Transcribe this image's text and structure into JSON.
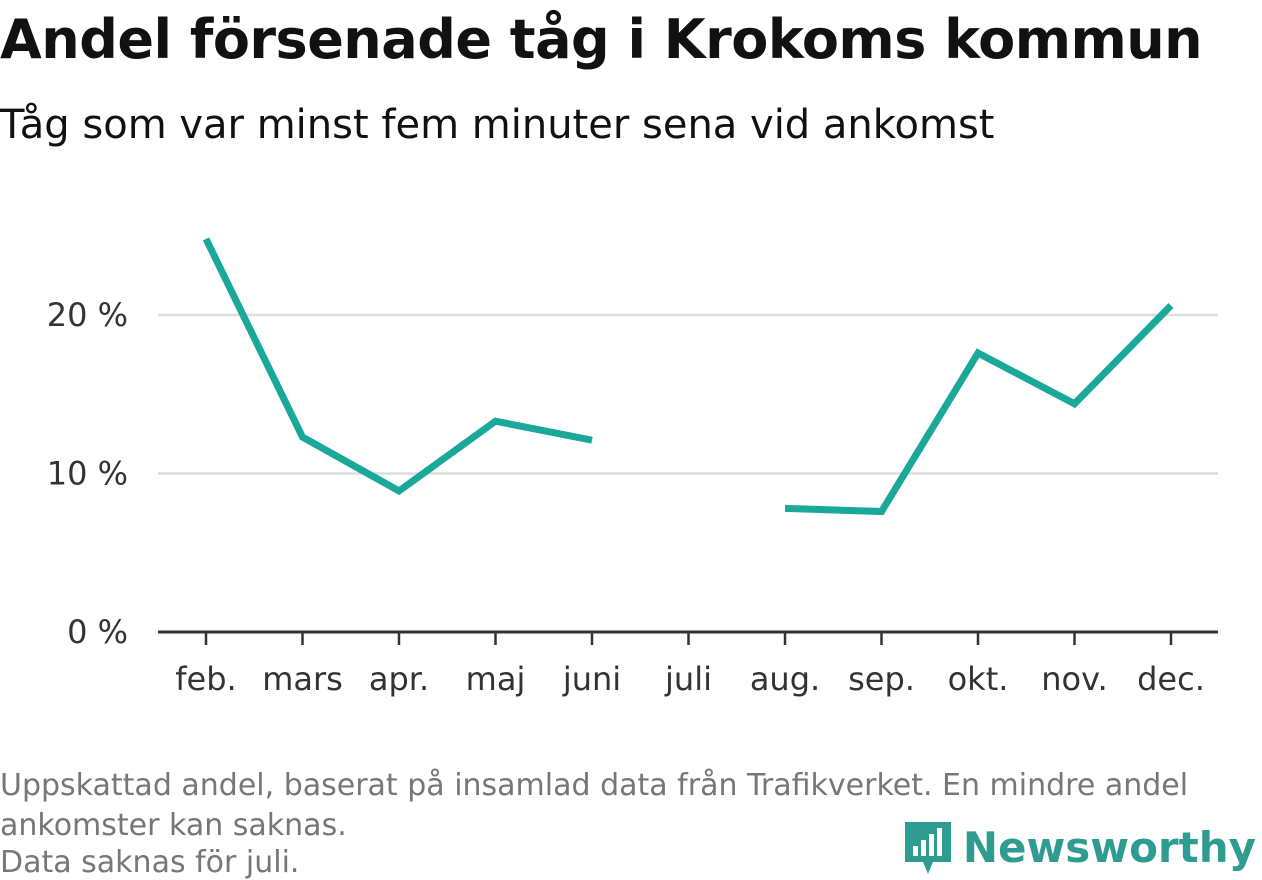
{
  "header": {
    "title": "Andel försenade tåg i Krokoms kommun",
    "subtitle": "Tåg som var minst fem minuter sena vid ankomst"
  },
  "colors": {
    "line": "#1aa89a",
    "grid": "#dddddd",
    "axis": "#333333",
    "logo": "#2f9c92"
  },
  "chart_data": {
    "type": "line",
    "categories": [
      "feb.",
      "mars",
      "apr.",
      "maj",
      "juni",
      "juli",
      "aug.",
      "sep.",
      "okt.",
      "nov.",
      "dec."
    ],
    "series": [
      {
        "values": [
          24.8,
          12.3,
          8.9,
          13.3,
          12.1,
          null,
          7.8,
          7.6,
          17.6,
          14.4,
          20.6
        ]
      }
    ],
    "yticks": [
      0,
      10,
      20
    ],
    "ytick_labels": [
      "0 %",
      "10 %",
      "20 %"
    ],
    "ylim": [
      0,
      26
    ],
    "grid": true,
    "legend": "none"
  },
  "footer": {
    "note_line1": "Uppskattad andel, baserat på insamlad data från Trafikverket. En mindre andel",
    "note_line2": "ankomster kan saknas.",
    "note_line3": "Data saknas för juli.",
    "logo_text": "Newsworthy",
    "logo_icon": "bar-chart-speech-bubble-icon"
  }
}
